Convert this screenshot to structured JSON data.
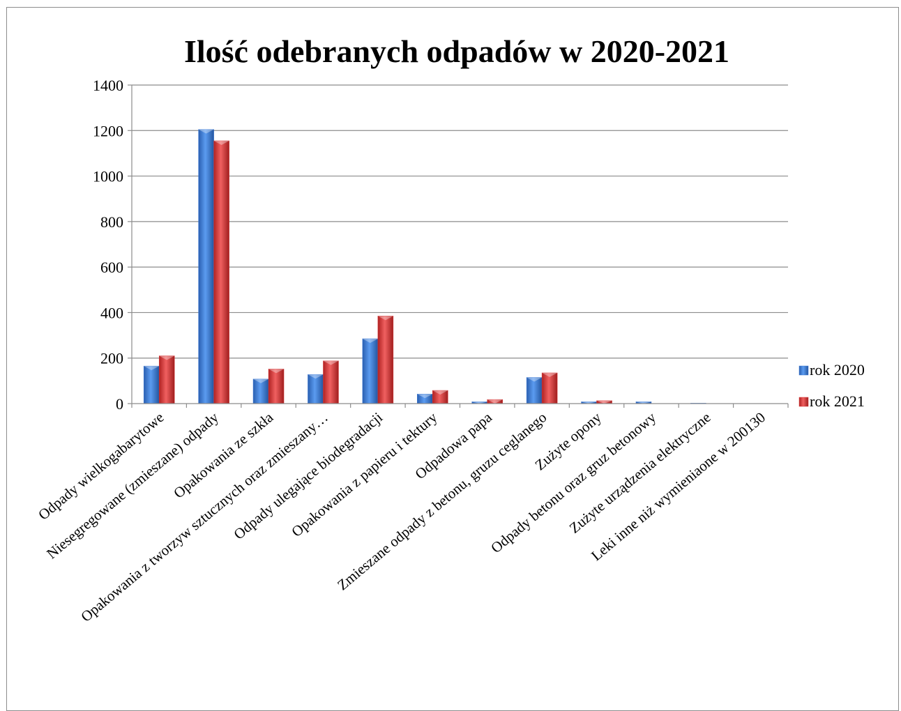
{
  "chart_data": {
    "type": "bar",
    "title": "Ilość odebranych odpadów w 2020-2021",
    "ylim": [
      0,
      1400
    ],
    "yticks": [
      0,
      200,
      400,
      600,
      800,
      1000,
      1200,
      1400
    ],
    "grid": true,
    "legend_position": "right",
    "categories": [
      "Odpady wielkogabarytowe",
      "Niesegregowane (zmieszane) odpady",
      "Opakowania ze szkła",
      "Opakowania z tworzyw sztucznych oraz zmieszany…",
      "Odpady ulegające biodegradacji",
      "Opakowania z papieru i tektury",
      "Odpadowa papa",
      "Zmieszane odpady z betonu, gruzu ceglanego",
      "Zużyte opony",
      "Odpady betonu oraz gruz betonowy",
      "Zużyte urządzenia elektryczne",
      "Leki inne niż wymieniaone w 200130"
    ],
    "series": [
      {
        "name": "rok 2020",
        "color": "#3a78d6",
        "values": [
          165,
          1205,
          108,
          128,
          285,
          42,
          8,
          115,
          8,
          8,
          2,
          0
        ]
      },
      {
        "name": "rok 2021",
        "color": "#d93636",
        "values": [
          210,
          1155,
          152,
          188,
          385,
          58,
          18,
          135,
          13,
          0,
          0,
          0
        ]
      }
    ]
  }
}
